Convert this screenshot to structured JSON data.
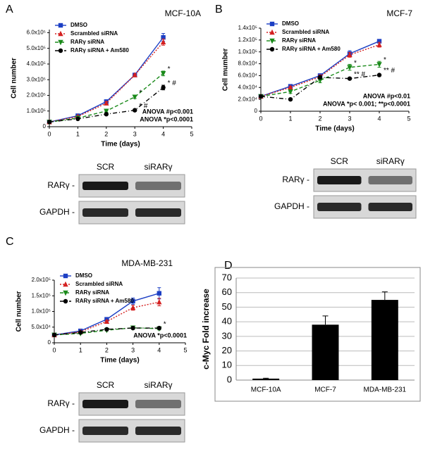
{
  "chart_data": [
    {
      "type": "line",
      "panel": "A",
      "title": "MCF-10A",
      "x_label": "Time (days)",
      "y_label": "Cell number",
      "x": [
        0,
        1,
        2,
        3,
        4
      ],
      "xlim": [
        0,
        5
      ],
      "xticks": [
        0,
        1,
        2,
        3,
        4,
        5
      ],
      "ylim": [
        0,
        620000
      ],
      "yticks": [
        0,
        {
          "value": 100000,
          "label": "1.0x10⁵"
        },
        {
          "value": 200000,
          "label": "2.0x10⁵"
        },
        {
          "value": 300000,
          "label": "3.0x10⁵"
        },
        {
          "value": 400000,
          "label": "4.0x10⁵"
        },
        {
          "value": 500000,
          "label": "5.0x10⁵"
        },
        {
          "value": 600000,
          "label": "6.0x10⁵"
        }
      ],
      "series": [
        {
          "name": "DMSO",
          "color": "#1c3fc4",
          "dash": "solid",
          "marker": "square",
          "values": [
            30000,
            70000,
            160000,
            330000,
            570000
          ],
          "errors": [
            3000,
            5000,
            12000,
            6000,
            25000
          ],
          "significance": [
            null,
            null,
            null,
            null,
            null
          ]
        },
        {
          "name": "Scrambled siRNA",
          "color": "#d42020",
          "dash": "dotted",
          "marker": "triangle",
          "values": [
            30000,
            65000,
            150000,
            330000,
            540000
          ],
          "errors": [
            3000,
            5000,
            10000,
            6000,
            20000
          ],
          "significance": [
            null,
            null,
            null,
            null,
            null
          ]
        },
        {
          "name": "RARγ siRNA",
          "color": "#1a8a1a",
          "dash": "dashed",
          "marker": "triangle-down",
          "values": [
            30000,
            55000,
            100000,
            190000,
            340000
          ],
          "errors": [
            3000,
            4000,
            8000,
            10000,
            15000
          ],
          "significance": [
            null,
            null,
            null,
            "*",
            "*"
          ]
        },
        {
          "name": "RARγ siRNA + Am580",
          "color": "#000000",
          "dash": "dashdot",
          "marker": "circle",
          "values": [
            30000,
            50000,
            80000,
            105000,
            250000
          ],
          "errors": [
            3000,
            4000,
            6000,
            8000,
            15000
          ],
          "significance": [
            null,
            null,
            null,
            "* #",
            "* #"
          ]
        }
      ],
      "annotations": [
        "ANOVA #p<0.001",
        "ANOVA *p<0.0001"
      ],
      "blot": {
        "lanes": [
          "SCR",
          "siRARγ"
        ],
        "rows": [
          "RARγ -",
          "GAPDH -"
        ]
      }
    },
    {
      "type": "line",
      "panel": "B",
      "title": "MCF-7",
      "x_label": "Time (days)",
      "y_label": "Cell mumber",
      "x": [
        0,
        1,
        2,
        3,
        4
      ],
      "xlim": [
        0,
        5
      ],
      "xticks": [
        0,
        1,
        2,
        3,
        4,
        5
      ],
      "ylim": [
        0,
        140000
      ],
      "yticks": [
        0,
        {
          "value": 20000,
          "label": "2.0x10⁴"
        },
        {
          "value": 40000,
          "label": "4.0x10⁴"
        },
        {
          "value": 60000,
          "label": "6.0x10⁴"
        },
        {
          "value": 80000,
          "label": "8.0x10⁴"
        },
        {
          "value": 100000,
          "label": "1.0x10⁵"
        },
        {
          "value": 120000,
          "label": "1.2x10⁵"
        },
        {
          "value": 140000,
          "label": "1.4x10⁵"
        }
      ],
      "series": [
        {
          "name": "DMSO",
          "color": "#1c3fc4",
          "dash": "solid",
          "marker": "square",
          "values": [
            25000,
            42000,
            60000,
            97000,
            118000
          ],
          "errors": [
            1000,
            2000,
            3000,
            5000,
            2000
          ],
          "significance": [
            null,
            null,
            null,
            null,
            null
          ]
        },
        {
          "name": "Scrambled siRNA",
          "color": "#d42020",
          "dash": "dotted",
          "marker": "triangle",
          "values": [
            25000,
            40000,
            58000,
            95000,
            112000
          ],
          "errors": [
            1000,
            2000,
            3000,
            4000,
            4000
          ],
          "significance": [
            null,
            null,
            null,
            null,
            null
          ]
        },
        {
          "name": "RARγ siRNA",
          "color": "#1a8a1a",
          "dash": "dashed",
          "marker": "triangle-down",
          "values": [
            25000,
            33000,
            52000,
            74000,
            79000
          ],
          "errors": [
            1000,
            3000,
            4000,
            5000,
            5000
          ],
          "significance": [
            null,
            null,
            null,
            "*",
            "*"
          ]
        },
        {
          "name": "RARγ siRNA + Am580",
          "color": "#000000",
          "dash": "dashdot",
          "marker": "circle",
          "values": [
            25000,
            20000,
            57000,
            55000,
            61000
          ],
          "errors": [
            1000,
            2000,
            3000,
            2000,
            1000
          ],
          "significance": [
            null,
            null,
            null,
            "** #",
            "** #"
          ]
        }
      ],
      "annotations": [
        "ANOVA #p<0.01",
        "ANOVA *p< 0.001; **p<0.0001"
      ],
      "blot": {
        "lanes": [
          "SCR",
          "siRARγ"
        ],
        "rows": [
          "RARγ -",
          "GAPDH -"
        ]
      }
    },
    {
      "type": "line",
      "panel": "C",
      "title": "MDA-MB-231",
      "x_label": "Time (days)",
      "y_label": "Cell number",
      "x": [
        0,
        1,
        2,
        3,
        4
      ],
      "xlim": [
        0,
        5
      ],
      "xticks": [
        0,
        1,
        2,
        3,
        4,
        5
      ],
      "ylim": [
        0,
        200000
      ],
      "yticks": [
        0,
        {
          "value": 50000,
          "label": "5.0x10⁴"
        },
        {
          "value": 100000,
          "label": "1.0x10⁵"
        },
        {
          "value": 150000,
          "label": "1.5x10⁵"
        },
        {
          "value": 200000,
          "label": "2.0x10⁵"
        }
      ],
      "series": [
        {
          "name": "DMSO",
          "color": "#1c3fc4",
          "dash": "solid",
          "marker": "square",
          "values": [
            25000,
            38000,
            75000,
            133000,
            158000
          ],
          "errors": [
            1000,
            2000,
            3000,
            10000,
            18000
          ],
          "significance": [
            null,
            null,
            null,
            null,
            null
          ]
        },
        {
          "name": "Scrambled siRNA",
          "color": "#d42020",
          "dash": "dotted",
          "marker": "triangle",
          "values": [
            25000,
            35000,
            68000,
            112000,
            130000
          ],
          "errors": [
            1000,
            2000,
            3000,
            8000,
            12000
          ],
          "significance": [
            null,
            null,
            null,
            null,
            null
          ]
        },
        {
          "name": "RARγ siRNA",
          "color": "#1a8a1a",
          "dash": "dashed",
          "marker": "triangle-down",
          "values": [
            25000,
            30000,
            40000,
            48000,
            45000
          ],
          "errors": [
            1000,
            2000,
            2000,
            3000,
            4000
          ],
          "significance": [
            null,
            null,
            null,
            null,
            "*"
          ]
        },
        {
          "name": "RARγ siRNA + Am580",
          "color": "#000000",
          "dash": "dashdot",
          "marker": "circle",
          "values": [
            25000,
            33000,
            43000,
            47000,
            47000
          ],
          "errors": [
            1000,
            2000,
            2000,
            3000,
            3000
          ],
          "significance": [
            null,
            null,
            null,
            null,
            null
          ]
        }
      ],
      "annotations": [
        "ANOVA *p<0.0001"
      ],
      "blot": {
        "lanes": [
          "SCR",
          "siRARγ"
        ],
        "rows": [
          "RARγ -",
          "GAPDH -"
        ]
      }
    },
    {
      "type": "bar",
      "panel": "D",
      "y_label": "c-Myc Fold increase",
      "categories": [
        "MCF-10A",
        "MCF-7",
        "MDA-MB-231"
      ],
      "values": [
        1,
        38,
        55
      ],
      "errors": [
        0.3,
        6,
        5.5
      ],
      "color": "#000000",
      "ylim": [
        0,
        70
      ],
      "yticks": [
        0,
        10,
        20,
        30,
        40,
        50,
        60,
        70
      ],
      "grid": true
    }
  ]
}
